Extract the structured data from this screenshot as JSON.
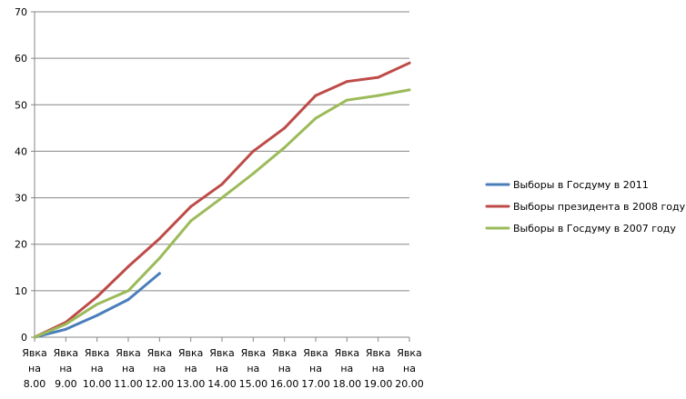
{
  "chart_data": {
    "type": "line",
    "categories": [
      [
        "Явка",
        "на",
        "8.00"
      ],
      [
        "Явка",
        "на",
        "9.00"
      ],
      [
        "Явка",
        "на",
        "10.00"
      ],
      [
        "Явка",
        "на",
        "11.00"
      ],
      [
        "Явка",
        "на",
        "12.00"
      ],
      [
        "Явка",
        "на",
        "13.00"
      ],
      [
        "Явка",
        "на",
        "14.00"
      ],
      [
        "Явка",
        "на",
        "15.00"
      ],
      [
        "Явка",
        "на",
        "16.00"
      ],
      [
        "Явка",
        "на",
        "17.00"
      ],
      [
        "Явка",
        "на",
        "18.00"
      ],
      [
        "Явка",
        "на",
        "19.00"
      ],
      [
        "Явка",
        "на",
        "20.00"
      ]
    ],
    "ylim": [
      0,
      70
    ],
    "yticks": [
      0,
      10,
      20,
      30,
      40,
      50,
      60,
      70
    ],
    "grid": true,
    "legend_position": "right",
    "series": [
      {
        "name": "Выборы в Госдуму в 2011",
        "color": "#4a7ebb",
        "values": [
          0,
          1.7,
          4.7,
          8.1,
          13.7,
          null,
          null,
          null,
          null,
          null,
          null,
          null,
          null
        ]
      },
      {
        "name": "Выборы президента в 2008 году",
        "color": "#be4b48",
        "values": [
          0,
          3.2,
          8.7,
          15.2,
          21.2,
          28.1,
          32.9,
          40.0,
          45.0,
          52.0,
          55.0,
          55.9,
          59.0
        ]
      },
      {
        "name": "Выборы в Госдуму в 2007 году",
        "color": "#9bbb59",
        "values": [
          0,
          2.8,
          7.1,
          10.0,
          17.0,
          25.0,
          30.0,
          35.2,
          40.8,
          47.1,
          51.0,
          52.0,
          53.2
        ]
      }
    ]
  }
}
